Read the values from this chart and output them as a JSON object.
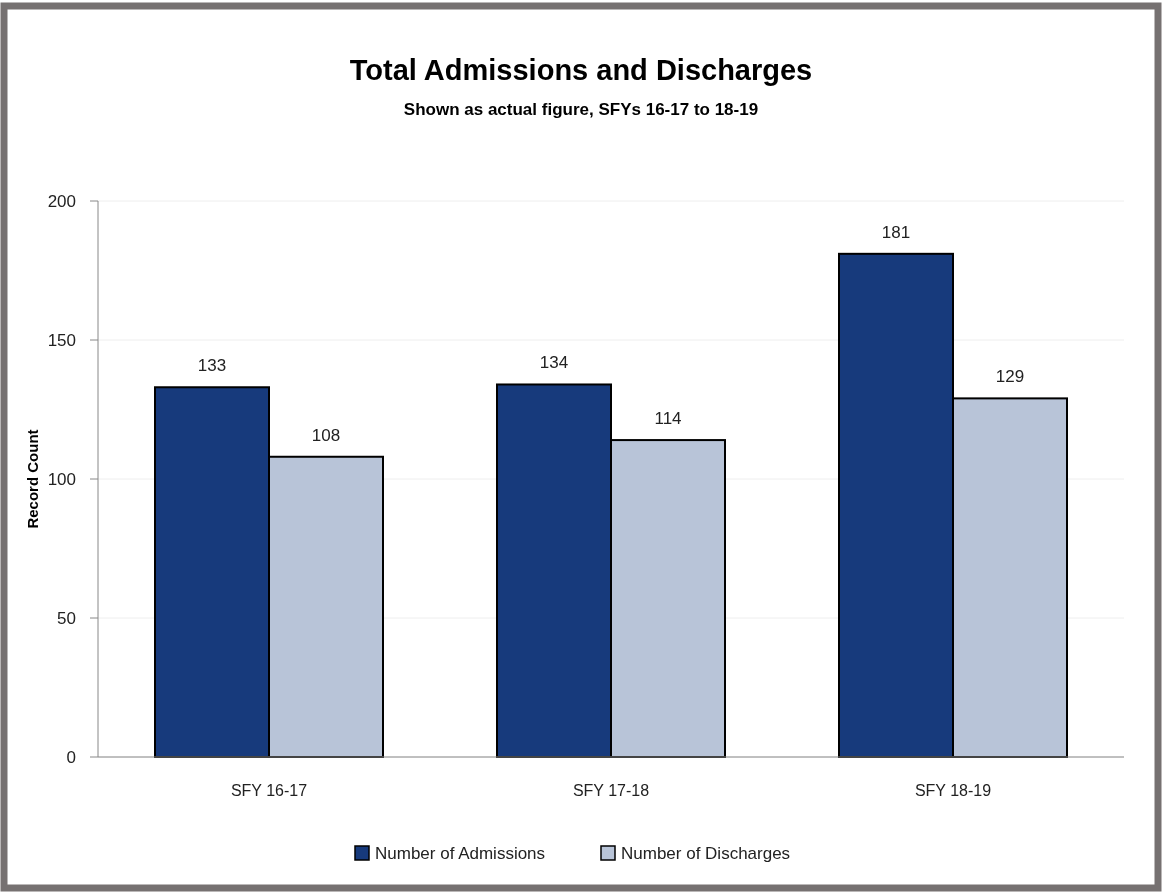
{
  "chart_data": {
    "type": "bar",
    "title": "Total Admissions and Discharges",
    "subtitle": "Shown as actual figure, SFYs 16-17 to 18-19",
    "ylabel": "Record Count",
    "categories": [
      "SFY 16-17",
      "SFY 17-18",
      "SFY 18-19"
    ],
    "series": [
      {
        "name": "Number of Admissions",
        "color": "#173a7c",
        "values": [
          133,
          134,
          181
        ]
      },
      {
        "name": "Number of Discharges",
        "color": "#b8c4d8",
        "values": [
          108,
          114,
          129
        ]
      }
    ],
    "ylim": [
      0,
      200
    ],
    "yticks": [
      0,
      50,
      100,
      150,
      200
    ],
    "grid": "y",
    "legend": "bottom",
    "data_labels": true
  }
}
